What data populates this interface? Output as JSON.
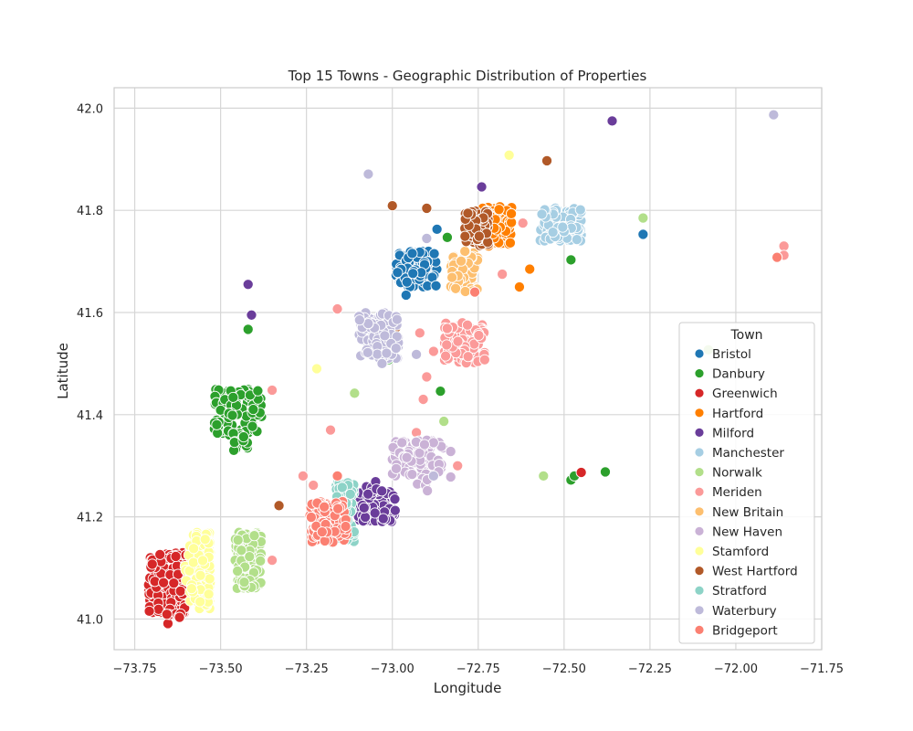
{
  "chart_data": {
    "type": "scatter",
    "title": "Top 15 Towns - Geographic Distribution of Properties",
    "xlabel": "Longitude",
    "ylabel": "Latitude",
    "xlim": [
      -73.81,
      -71.75
    ],
    "ylim": [
      40.94,
      42.04
    ],
    "xticks": [
      -73.75,
      -73.5,
      -73.25,
      -73.0,
      -72.75,
      -72.5,
      -72.25,
      -72.0,
      -71.75
    ],
    "xtick_labels": [
      "−73.75",
      "−73.50",
      "−73.25",
      "−73.00",
      "−72.75",
      "−72.50",
      "−72.25",
      "−72.00",
      "−71.75"
    ],
    "yticks": [
      41.0,
      41.2,
      41.4,
      41.6,
      41.8,
      42.0
    ],
    "ytick_labels": [
      "41.0",
      "41.2",
      "41.4",
      "41.6",
      "41.8",
      "42.0"
    ],
    "grid": true,
    "legend": {
      "title": "Town",
      "placement": "lower-right"
    },
    "series": [
      {
        "name": "Bristol",
        "color": "#1f77b4",
        "clusters": [
          {
            "x": [
              -72.99,
              -72.87
            ],
            "y": [
              41.65,
              41.72
            ],
            "n": 110,
            "shape": "box"
          }
        ],
        "points": [
          [
            -72.87,
            41.763
          ],
          [
            -72.27,
            41.753
          ],
          [
            -72.96,
            41.634
          ]
        ]
      },
      {
        "name": "Danbury",
        "color": "#2ca02c",
        "clusters": [
          {
            "x": [
              -73.52,
              -73.38
            ],
            "y": [
              41.36,
              41.45
            ],
            "n": 110,
            "shape": "box"
          },
          {
            "x": [
              -73.47,
              -73.42
            ],
            "y": [
              41.33,
              41.37
            ],
            "n": 14,
            "shape": "box"
          }
        ],
        "points": [
          [
            -73.42,
            41.567
          ],
          [
            -72.84,
            41.747
          ],
          [
            -73.01,
            41.508
          ],
          [
            -72.86,
            41.446
          ],
          [
            -72.48,
            41.703
          ],
          [
            -72.48,
            41.272
          ],
          [
            -72.47,
            41.28
          ],
          [
            -72.38,
            41.288
          ]
        ]
      },
      {
        "name": "Greenwich",
        "color": "#d62728",
        "clusters": [
          {
            "x": [
              -73.71,
              -73.55
            ],
            "y": [
              41.01,
              41.13
            ],
            "n": 240,
            "shape": "tri-left"
          },
          {
            "x": [
              -73.66,
              -73.6
            ],
            "y": [
              40.99,
              41.02
            ],
            "n": 8,
            "shape": "box"
          }
        ],
        "points": [
          [
            -72.45,
            41.287
          ],
          [
            -73.41,
            41.07
          ]
        ]
      },
      {
        "name": "Hartford",
        "color": "#ff7f00",
        "clusters": [
          {
            "x": [
              -72.74,
              -72.65
            ],
            "y": [
              41.73,
              41.81
            ],
            "n": 80,
            "shape": "box"
          }
        ],
        "points": [
          [
            -72.6,
            41.685
          ],
          [
            -72.63,
            41.65
          ]
        ]
      },
      {
        "name": "Milford",
        "color": "#6a3d9a",
        "clusters": [
          {
            "x": [
              -73.1,
              -72.99
            ],
            "y": [
              41.19,
              41.25
            ],
            "n": 100,
            "shape": "box"
          },
          {
            "x": [
              -73.08,
              -73.03
            ],
            "y": [
              41.24,
              41.27
            ],
            "n": 10,
            "shape": "box"
          }
        ],
        "points": [
          [
            -73.42,
            41.655
          ],
          [
            -73.41,
            41.595
          ],
          [
            -72.74,
            41.846
          ],
          [
            -72.36,
            41.975
          ]
        ]
      },
      {
        "name": "Manchester",
        "color": "#a6cee3",
        "clusters": [
          {
            "x": [
              -72.57,
              -72.45
            ],
            "y": [
              41.74,
              41.81
            ],
            "n": 110,
            "shape": "box"
          }
        ],
        "points": []
      },
      {
        "name": "Norwalk",
        "color": "#b2df8a",
        "clusters": [
          {
            "x": [
              -73.46,
              -73.38
            ],
            "y": [
              41.06,
              41.17
            ],
            "n": 90,
            "shape": "box"
          }
        ],
        "points": [
          [
            -72.27,
            41.785
          ],
          [
            -72.08,
            41.527
          ],
          [
            -73.11,
            41.442
          ],
          [
            -72.85,
            41.387
          ],
          [
            -72.56,
            41.28
          ]
        ]
      },
      {
        "name": "Meriden",
        "color": "#fb9a99",
        "clusters": [
          {
            "x": [
              -72.85,
              -72.73
            ],
            "y": [
              41.5,
              41.58
            ],
            "n": 100,
            "shape": "box"
          }
        ],
        "points": [
          [
            -73.35,
            41.448
          ],
          [
            -73.16,
            41.607
          ],
          [
            -72.92,
            41.56
          ],
          [
            -72.9,
            41.474
          ],
          [
            -72.91,
            41.43
          ],
          [
            -72.88,
            41.524
          ],
          [
            -72.93,
            41.365
          ],
          [
            -73.18,
            41.37
          ],
          [
            -73.26,
            41.28
          ],
          [
            -73.23,
            41.262
          ],
          [
            -73.35,
            41.115
          ],
          [
            -72.68,
            41.675
          ],
          [
            -72.62,
            41.775
          ],
          [
            -71.86,
            41.73
          ],
          [
            -71.86,
            41.712
          ],
          [
            -71.88,
            41.708
          ],
          [
            -72.81,
            41.3
          ]
        ]
      },
      {
        "name": "New Britain",
        "color": "#fdbf6f",
        "clusters": [
          {
            "x": [
              -72.83,
              -72.75
            ],
            "y": [
              41.64,
              41.72
            ],
            "n": 70,
            "shape": "box"
          }
        ],
        "points": []
      },
      {
        "name": "New Haven",
        "color": "#cab2d6",
        "clusters": [
          {
            "x": [
              -73.0,
              -72.85
            ],
            "y": [
              41.28,
              41.35
            ],
            "n": 80,
            "shape": "box"
          },
          {
            "x": [
              -72.93,
              -72.89
            ],
            "y": [
              41.25,
              41.28
            ],
            "n": 6,
            "shape": "box"
          }
        ],
        "points": [
          [
            -72.83,
            41.328
          ],
          [
            -72.83,
            41.278
          ]
        ]
      },
      {
        "name": "Stamford",
        "color": "#ffff99",
        "clusters": [
          {
            "x": [
              -73.61,
              -73.53
            ],
            "y": [
              41.02,
              41.17
            ],
            "n": 130,
            "shape": "tri-right"
          }
        ],
        "points": [
          [
            -73.22,
            41.49
          ],
          [
            -72.66,
            41.908
          ]
        ]
      },
      {
        "name": "West Hartford",
        "color": "#b15928",
        "clusters": [
          {
            "x": [
              -72.79,
              -72.72
            ],
            "y": [
              41.73,
              41.8
            ],
            "n": 90,
            "shape": "box"
          }
        ],
        "points": [
          [
            -73.0,
            41.809
          ],
          [
            -72.9,
            41.804
          ],
          [
            -72.99,
            41.57
          ],
          [
            -73.33,
            41.222
          ],
          [
            -72.55,
            41.897
          ]
        ]
      },
      {
        "name": "Stratford",
        "color": "#8dd3c7",
        "clusters": [
          {
            "x": [
              -73.17,
              -73.11
            ],
            "y": [
              41.15,
              41.27
            ],
            "n": 70,
            "shape": "box"
          }
        ],
        "points": []
      },
      {
        "name": "Waterbury",
        "color": "#bebada",
        "clusters": [
          {
            "x": [
              -73.1,
              -72.98
            ],
            "y": [
              41.51,
              41.6
            ],
            "n": 100,
            "shape": "box"
          }
        ],
        "points": [
          [
            -73.07,
            41.871
          ],
          [
            -72.9,
            41.745
          ],
          [
            -73.03,
            41.5
          ],
          [
            -72.93,
            41.518
          ],
          [
            -71.89,
            41.987
          ],
          [
            -72.88,
            41.28
          ]
        ]
      },
      {
        "name": "Bridgeport",
        "color": "#fb8072",
        "clusters": [
          {
            "x": [
              -73.24,
              -73.13
            ],
            "y": [
              41.15,
              41.23
            ],
            "n": 100,
            "shape": "box"
          }
        ],
        "points": [
          [
            -73.16,
            41.28
          ],
          [
            -72.76,
            41.64
          ],
          [
            -71.88,
            41.708
          ]
        ]
      }
    ]
  }
}
